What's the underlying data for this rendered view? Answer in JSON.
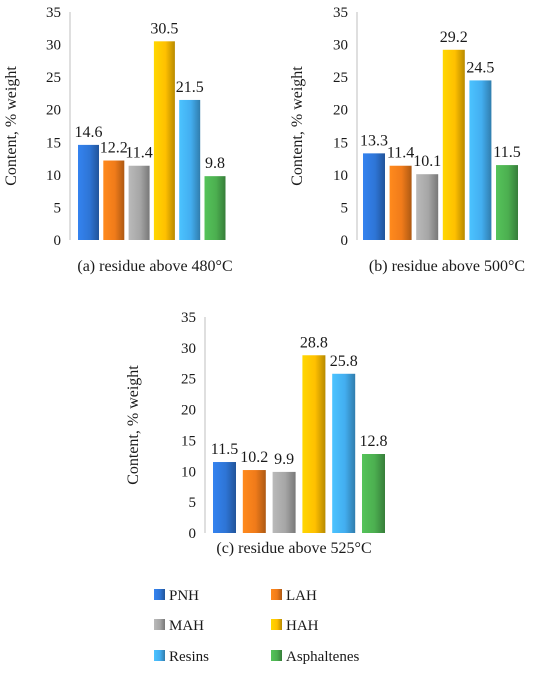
{
  "chart_data": [
    {
      "type": "bar",
      "title": "(a) residue above 480°C",
      "ylabel": "Content, % weight",
      "ylim": [
        0,
        35
      ],
      "yticks": [
        0,
        5,
        10,
        15,
        20,
        25,
        30,
        35
      ],
      "series": [
        {
          "name": "PNH",
          "values": [
            14.6
          ]
        },
        {
          "name": "LAH",
          "values": [
            12.2
          ]
        },
        {
          "name": "MAH",
          "values": [
            11.4
          ]
        },
        {
          "name": "HAH",
          "values": [
            30.5
          ]
        },
        {
          "name": "Resins",
          "values": [
            21.5
          ]
        },
        {
          "name": "Asphaltenes",
          "values": [
            9.8
          ]
        }
      ]
    },
    {
      "type": "bar",
      "title": "(b) residue above 500°C",
      "ylabel": "Content, % weight",
      "ylim": [
        0,
        35
      ],
      "yticks": [
        0,
        5,
        10,
        15,
        20,
        25,
        30,
        35
      ],
      "series": [
        {
          "name": "PNH",
          "values": [
            13.3
          ]
        },
        {
          "name": "LAH",
          "values": [
            11.4
          ]
        },
        {
          "name": "MAH",
          "values": [
            10.1
          ]
        },
        {
          "name": "HAH",
          "values": [
            29.2
          ]
        },
        {
          "name": "Resins",
          "values": [
            24.5
          ]
        },
        {
          "name": "Asphaltenes",
          "values": [
            11.5
          ]
        }
      ]
    },
    {
      "type": "bar",
      "title": "(c) residue above 525°C",
      "ylabel": "Content, % weight",
      "ylim": [
        0,
        35
      ],
      "yticks": [
        0,
        5,
        10,
        15,
        20,
        25,
        30,
        35
      ],
      "series": [
        {
          "name": "PNH",
          "values": [
            11.5
          ]
        },
        {
          "name": "LAH",
          "values": [
            10.2
          ]
        },
        {
          "name": "MAH",
          "values": [
            9.9
          ]
        },
        {
          "name": "HAH",
          "values": [
            28.8
          ]
        },
        {
          "name": "Resins",
          "values": [
            25.8
          ]
        },
        {
          "name": "Asphaltenes",
          "values": [
            12.8
          ]
        }
      ]
    }
  ],
  "legend": {
    "placement": "bottom",
    "items": [
      {
        "label": "PNH",
        "color": "#2e75d6"
      },
      {
        "label": "LAH",
        "color": "#f07b1a"
      },
      {
        "label": "MAH",
        "color": "#a6a6a6"
      },
      {
        "label": "HAH",
        "color": "#ffc000"
      },
      {
        "label": "Resins",
        "color": "#43aef0"
      },
      {
        "label": "Asphaltenes",
        "color": "#4caf50"
      }
    ]
  }
}
